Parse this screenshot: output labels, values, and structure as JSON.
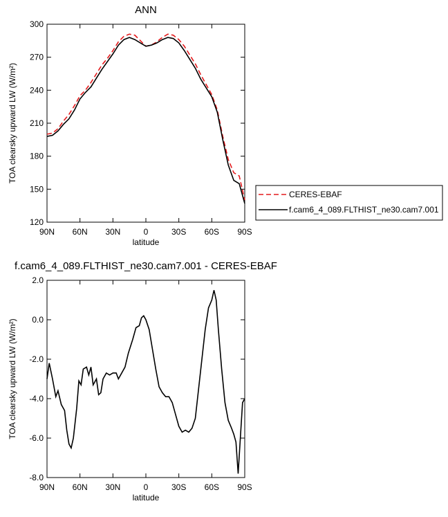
{
  "chart_data": [
    {
      "type": "line",
      "title": "ANN",
      "xlabel": "latitude",
      "ylabel": "TOA clearsky upward LW (W/m²)",
      "x": [
        90,
        85,
        80,
        75,
        70,
        65,
        60,
        55,
        50,
        45,
        40,
        35,
        30,
        25,
        20,
        15,
        10,
        5,
        0,
        -5,
        -10,
        -15,
        -20,
        -25,
        -30,
        -35,
        -40,
        -45,
        -50,
        -55,
        -60,
        -65,
        -70,
        -75,
        -80,
        -85,
        -90
      ],
      "xlim": [
        90,
        -90
      ],
      "xticks": [
        {
          "value": 90,
          "label": "90N"
        },
        {
          "value": 60,
          "label": "60N"
        },
        {
          "value": 30,
          "label": "30N"
        },
        0,
        {
          "value": -30,
          "label": "30S"
        },
        {
          "value": -60,
          "label": "60S"
        },
        {
          "value": -90,
          "label": "90S"
        }
      ],
      "ylim": [
        120,
        300
      ],
      "yticks": [
        120,
        150,
        180,
        210,
        240,
        270,
        300
      ],
      "legend": "outside-right",
      "series": [
        {
          "name": "CERES-EBAF",
          "color": "#e41a1c",
          "line_style": "dashed",
          "values": [
            200,
            201,
            205,
            212,
            218,
            226,
            235,
            240,
            247,
            255,
            263,
            269,
            276,
            284,
            289,
            291,
            290,
            285,
            280,
            281,
            284,
            288,
            291,
            290,
            286,
            280,
            272,
            264,
            254,
            245,
            236,
            222,
            198,
            177,
            165,
            162,
            140
          ]
        },
        {
          "name": "f.cam6_4_089.FLTHIST_ne30.cam7.001",
          "color": "#000000",
          "line_style": "solid",
          "values": [
            198,
            199,
            203,
            209,
            214,
            222,
            232,
            238,
            243,
            251,
            259,
            266,
            273,
            281,
            286,
            288,
            286,
            283,
            280,
            281,
            283,
            286,
            288,
            287,
            283,
            276,
            268,
            260,
            250,
            242,
            234,
            220,
            195,
            172,
            158,
            155,
            137
          ]
        }
      ]
    },
    {
      "type": "line",
      "title": "f.cam6_4_089.FLTHIST_ne30.cam7.001 - CERES-EBAF",
      "xlabel": "latitude",
      "ylabel": "TOA clearsky upward LW (W/m²)",
      "x": [
        90,
        88,
        85,
        82,
        80,
        77,
        74,
        72,
        70,
        68,
        66,
        63,
        61,
        59,
        57,
        54,
        52,
        50,
        48,
        45,
        43,
        41,
        39,
        36,
        33,
        30,
        27,
        25,
        22,
        19,
        16,
        12,
        9,
        6,
        4,
        2,
        0,
        -3,
        -6,
        -9,
        -12,
        -15,
        -18,
        -21,
        -24,
        -27,
        -30,
        -33,
        -36,
        -39,
        -42,
        -45,
        -48,
        -51,
        -54,
        -57,
        -60,
        -62,
        -64,
        -66,
        -69,
        -72,
        -75,
        -78,
        -80,
        -82,
        -84,
        -86,
        -88,
        -90
      ],
      "xlim": [
        90,
        -90
      ],
      "xticks": [
        {
          "value": 90,
          "label": "90N"
        },
        {
          "value": 60,
          "label": "60N"
        },
        {
          "value": 30,
          "label": "30N"
        },
        0,
        {
          "value": -30,
          "label": "30S"
        },
        {
          "value": -60,
          "label": "60S"
        },
        {
          "value": -90,
          "label": "90S"
        }
      ],
      "ylim": [
        -8,
        2
      ],
      "yticks": [
        {
          "value": -8,
          "label": "-8.0"
        },
        {
          "value": -6,
          "label": "-6.0"
        },
        {
          "value": -4,
          "label": "-4.0"
        },
        {
          "value": -2,
          "label": "-2.0"
        },
        {
          "value": 0,
          "label": "0.0"
        },
        {
          "value": 2,
          "label": "2.0"
        }
      ],
      "series": [
        {
          "color": "#000000",
          "line_style": "solid",
          "values": [
            -3.0,
            -2.2,
            -3.0,
            -3.9,
            -3.6,
            -4.3,
            -4.6,
            -5.6,
            -6.3,
            -6.5,
            -6.0,
            -4.5,
            -3.1,
            -3.3,
            -2.5,
            -2.4,
            -2.8,
            -2.4,
            -3.3,
            -3.0,
            -3.8,
            -3.7,
            -3.0,
            -2.7,
            -2.8,
            -2.7,
            -2.7,
            -3.0,
            -2.7,
            -2.4,
            -1.7,
            -1.0,
            -0.4,
            -0.3,
            0.1,
            0.2,
            0.0,
            -0.5,
            -1.5,
            -2.5,
            -3.4,
            -3.7,
            -3.9,
            -3.9,
            -4.2,
            -4.8,
            -5.4,
            -5.7,
            -5.6,
            -5.7,
            -5.5,
            -5.0,
            -3.5,
            -2.0,
            -0.5,
            0.6,
            1.0,
            1.5,
            1.0,
            -0.5,
            -2.5,
            -4.2,
            -5.1,
            -5.5,
            -5.8,
            -6.2,
            -7.8,
            -6.0,
            -4.2,
            -4.0
          ]
        }
      ]
    }
  ]
}
